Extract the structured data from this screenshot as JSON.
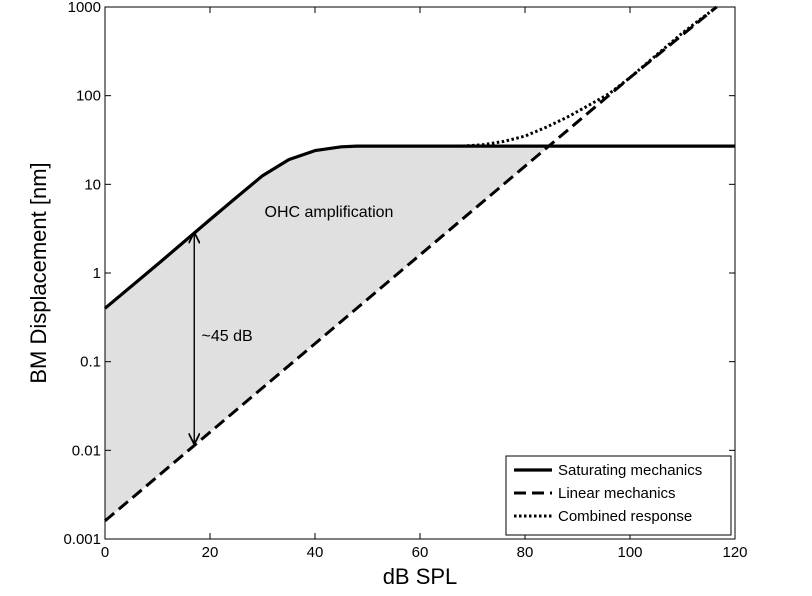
{
  "chart_data": {
    "type": "line",
    "title": "",
    "xlabel": "dB SPL",
    "ylabel": "BM Displacement [nm]",
    "xlim": [
      0,
      120
    ],
    "ylim": [
      0.001,
      1000
    ],
    "yscale": "log",
    "grid": false,
    "legend_position": "bottom-right",
    "x_ticks": [
      0,
      20,
      40,
      60,
      80,
      100,
      120
    ],
    "x_tick_labels": [
      "0",
      "20",
      "40",
      "60",
      "80",
      "100",
      "120"
    ],
    "y_ticks": [
      0.001,
      0.01,
      0.1,
      1,
      10,
      100,
      1000
    ],
    "y_tick_labels": [
      "0.001",
      "0.01",
      "0.1",
      "1",
      "10",
      "100",
      "1000"
    ],
    "series": [
      {
        "name": "Saturating mechanics",
        "style": "solid",
        "x": [
          0,
          10,
          20,
          25,
          30,
          35,
          40,
          45,
          48,
          60,
          70,
          80,
          90,
          100,
          110,
          120
        ],
        "y": [
          0.4,
          1.25,
          4.0,
          7.1,
          12.5,
          19,
          24,
          26.5,
          27,
          27,
          27,
          27,
          27,
          27,
          27,
          27
        ]
      },
      {
        "name": "Linear mechanics",
        "style": "dashed",
        "x": [
          0,
          20,
          40,
          60,
          80,
          100,
          116.5
        ],
        "y": [
          0.0016,
          0.016,
          0.16,
          1.6,
          16,
          160,
          1000
        ]
      },
      {
        "name": "Combined response",
        "style": "dotted",
        "x": [
          68,
          72,
          76,
          80,
          84,
          88,
          92,
          96,
          100,
          110,
          116.5
        ],
        "y": [
          27,
          28,
          30.5,
          35,
          44,
          57,
          77,
          105,
          160,
          510,
          1000
        ]
      }
    ],
    "shaded_region": {
      "label": "OHC amplification",
      "between": [
        "Saturating mechanics",
        "Linear mechanics"
      ],
      "fill": "#e0e0e0"
    },
    "annotations": [
      {
        "text": "OHC amplification",
        "x": 30,
        "y": 5
      },
      {
        "text": "~45 dB",
        "x": 18,
        "y": 0.2,
        "arrow": {
          "x": 17,
          "y_from": 2.8,
          "y_to": 0.012
        }
      }
    ]
  }
}
